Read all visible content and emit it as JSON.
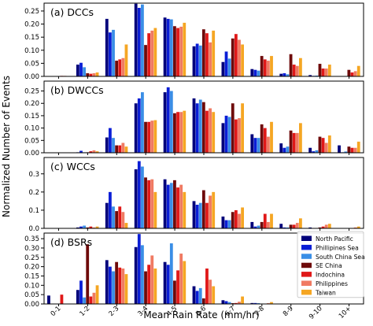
{
  "figure": {
    "ylabel": "Normalized Number of Events",
    "xlabel": "Mean Rain Rate (mm/hr)"
  },
  "legend": {
    "location": "lower-right of panel (d)",
    "entries": [
      {
        "name": "North Pacific",
        "color": "#00007a"
      },
      {
        "name": "Phillipines Sea",
        "color": "#0a1ed6"
      },
      {
        "name": "South China Sea",
        "color": "#3a8ee6"
      },
      {
        "name": "SE China",
        "color": "#6e0a0a"
      },
      {
        "name": "Indochina",
        "color": "#e01818"
      },
      {
        "name": "Philippines",
        "color": "#f07a62"
      },
      {
        "name": "Taiwan",
        "color": "#f5a623"
      }
    ]
  },
  "chart_data": [
    {
      "type": "bar",
      "title": "(a) DCCs",
      "categories": [
        "0-1",
        "1-2",
        "2-3",
        "3-4",
        "4-5",
        "5-6",
        "6-7",
        "7-8",
        "8-9",
        "9-10",
        "10+"
      ],
      "ylim": [
        0,
        0.28
      ],
      "yticks": [
        "0.00",
        "0.05",
        "0.10",
        "0.15",
        "0.20",
        "0.25"
      ],
      "grid": false,
      "series": [
        {
          "name": "North Pacific",
          "values": [
            0,
            0.045,
            0.22,
            0.278,
            0.225,
            0.115,
            0.055,
            0.028,
            0.01,
            0.005,
            0
          ]
        },
        {
          "name": "Phillipines Sea",
          "values": [
            0,
            0.052,
            0.168,
            0.262,
            0.22,
            0.125,
            0.095,
            0.025,
            0.012,
            0.002,
            0.001
          ]
        },
        {
          "name": "South China Sea",
          "values": [
            0,
            0.035,
            0.178,
            0.275,
            0.218,
            0.118,
            0.068,
            0.022,
            0.008,
            0.003,
            0
          ]
        },
        {
          "name": "SE China",
          "values": [
            0,
            0.012,
            0.06,
            0.12,
            0.192,
            0.18,
            0.145,
            0.078,
            0.085,
            0.048,
            0.025
          ]
        },
        {
          "name": "Indochina",
          "values": [
            0.002,
            0.01,
            0.065,
            0.165,
            0.185,
            0.165,
            0.162,
            0.065,
            0.045,
            0.03,
            0.015
          ]
        },
        {
          "name": "Philippines",
          "values": [
            0.002,
            0.012,
            0.07,
            0.175,
            0.19,
            0.13,
            0.14,
            0.06,
            0.04,
            0.03,
            0.02
          ]
        },
        {
          "name": "Taiwan",
          "values": [
            0.001,
            0.015,
            0.122,
            0.185,
            0.205,
            0.175,
            0.122,
            0.078,
            0.07,
            0.045,
            0.04
          ]
        }
      ]
    },
    {
      "type": "bar",
      "title": "(b) DWCCs",
      "categories": [
        "0-1",
        "1-2",
        "2-3",
        "3-4",
        "4-5",
        "5-6",
        "6-7",
        "7-8",
        "8-9",
        "9-10",
        "10+"
      ],
      "ylim": [
        0,
        0.29
      ],
      "yticks": [
        "0.00",
        "0.05",
        "0.10",
        "0.15",
        "0.20",
        "0.25"
      ],
      "grid": false,
      "series": [
        {
          "name": "North Pacific",
          "values": [
            0,
            0.002,
            0.062,
            0.2,
            0.245,
            0.22,
            0.12,
            0.075,
            0.038,
            0.02,
            0.03
          ]
        },
        {
          "name": "Phillipines Sea",
          "values": [
            0,
            0.008,
            0.1,
            0.22,
            0.265,
            0.2,
            0.15,
            0.06,
            0.02,
            0.006,
            0.002
          ]
        },
        {
          "name": "South China Sea",
          "values": [
            0,
            0.002,
            0.06,
            0.245,
            0.25,
            0.215,
            0.145,
            0.06,
            0.025,
            0.01,
            0.005
          ]
        },
        {
          "name": "SE China",
          "values": [
            0,
            0.002,
            0.03,
            0.125,
            0.16,
            0.205,
            0.2,
            0.115,
            0.09,
            0.065,
            0.025
          ]
        },
        {
          "name": "Indochina",
          "values": [
            0,
            0.006,
            0.03,
            0.125,
            0.165,
            0.17,
            0.135,
            0.1,
            0.08,
            0.06,
            0.02
          ]
        },
        {
          "name": "Philippines",
          "values": [
            0,
            0.01,
            0.04,
            0.13,
            0.165,
            0.18,
            0.14,
            0.065,
            0.08,
            0.04,
            0.02
          ]
        },
        {
          "name": "Taiwan",
          "values": [
            0,
            0.006,
            0.025,
            0.132,
            0.17,
            0.165,
            0.2,
            0.125,
            0.12,
            0.07,
            0.045
          ]
        }
      ]
    },
    {
      "type": "bar",
      "title": "(c) WCCs",
      "categories": [
        "0-1",
        "1-2",
        "2-3",
        "3-4",
        "4-5",
        "5-6",
        "6-7",
        "7-8",
        "8-9",
        "9-10",
        "10+"
      ],
      "ylim": [
        0,
        0.39
      ],
      "yticks": [
        "0.0",
        "0.1",
        "0.2",
        "0.3"
      ],
      "grid": false,
      "series": [
        {
          "name": "North Pacific",
          "values": [
            0,
            0.005,
            0.14,
            0.325,
            0.27,
            0.15,
            0.065,
            0.035,
            0.025,
            0.005,
            0
          ]
        },
        {
          "name": "Phillipines Sea",
          "values": [
            0,
            0.01,
            0.2,
            0.37,
            0.24,
            0.13,
            0.045,
            0.01,
            0.005,
            0,
            0
          ]
        },
        {
          "name": "South China Sea",
          "values": [
            0,
            0.015,
            0.12,
            0.34,
            0.25,
            0.14,
            0.045,
            0.015,
            0.005,
            0,
            0
          ]
        },
        {
          "name": "SE China",
          "values": [
            0,
            0.005,
            0.095,
            0.28,
            0.265,
            0.21,
            0.09,
            0.035,
            0.02,
            0.005,
            0
          ]
        },
        {
          "name": "Indochina",
          "values": [
            0,
            0.01,
            0.12,
            0.265,
            0.225,
            0.14,
            0.1,
            0.08,
            0.02,
            0.01,
            0
          ]
        },
        {
          "name": "Philippines",
          "values": [
            0,
            0.005,
            0.09,
            0.27,
            0.24,
            0.18,
            0.08,
            0.035,
            0.03,
            0.02,
            0.005
          ]
        },
        {
          "name": "Taiwan",
          "values": [
            0,
            0.01,
            0.03,
            0.2,
            0.2,
            0.2,
            0.115,
            0.08,
            0.055,
            0.025,
            0.01
          ]
        }
      ]
    },
    {
      "type": "bar",
      "title": "(d) BSRs",
      "categories": [
        "0-1",
        "1-2",
        "2-3",
        "3-4",
        "4-5",
        "5-6",
        "6-7",
        "7-8",
        "8-9",
        "9-10",
        "10+"
      ],
      "ylim": [
        0,
        0.38
      ],
      "yticks": [
        "0.00",
        "0.05",
        "0.10",
        "0.15",
        "0.20",
        "0.25",
        "0.30",
        "0.35"
      ],
      "grid": false,
      "series": [
        {
          "name": "North Pacific",
          "values": [
            0.045,
            0.075,
            0.235,
            0.305,
            0.225,
            0.095,
            0.02,
            0.005,
            0.001,
            0,
            0
          ]
        },
        {
          "name": "Phillipines Sea",
          "values": [
            0.002,
            0.125,
            0.2,
            0.375,
            0.21,
            0.07,
            0.015,
            0.005,
            0,
            0,
            0
          ]
        },
        {
          "name": "South China Sea",
          "values": [
            0.002,
            0.035,
            0.175,
            0.315,
            0.325,
            0.085,
            0.01,
            0.004,
            0.001,
            0,
            0
          ]
        },
        {
          "name": "SE China",
          "values": [
            0.002,
            0.32,
            0.225,
            0.175,
            0.125,
            0.03,
            0.004,
            0.001,
            0,
            0,
            0
          ]
        },
        {
          "name": "Indochina",
          "values": [
            0.05,
            0.04,
            0.195,
            0.21,
            0.18,
            0.19,
            0.005,
            0.002,
            0,
            0,
            0
          ]
        },
        {
          "name": "Philippines",
          "values": [
            0.002,
            0.06,
            0.19,
            0.26,
            0.27,
            0.13,
            0.012,
            0.004,
            0.001,
            0,
            0
          ]
        },
        {
          "name": "Taiwan",
          "values": [
            0.002,
            0.1,
            0.16,
            0.19,
            0.23,
            0.095,
            0.04,
            0.01,
            0.002,
            0,
            0
          ]
        }
      ]
    }
  ]
}
